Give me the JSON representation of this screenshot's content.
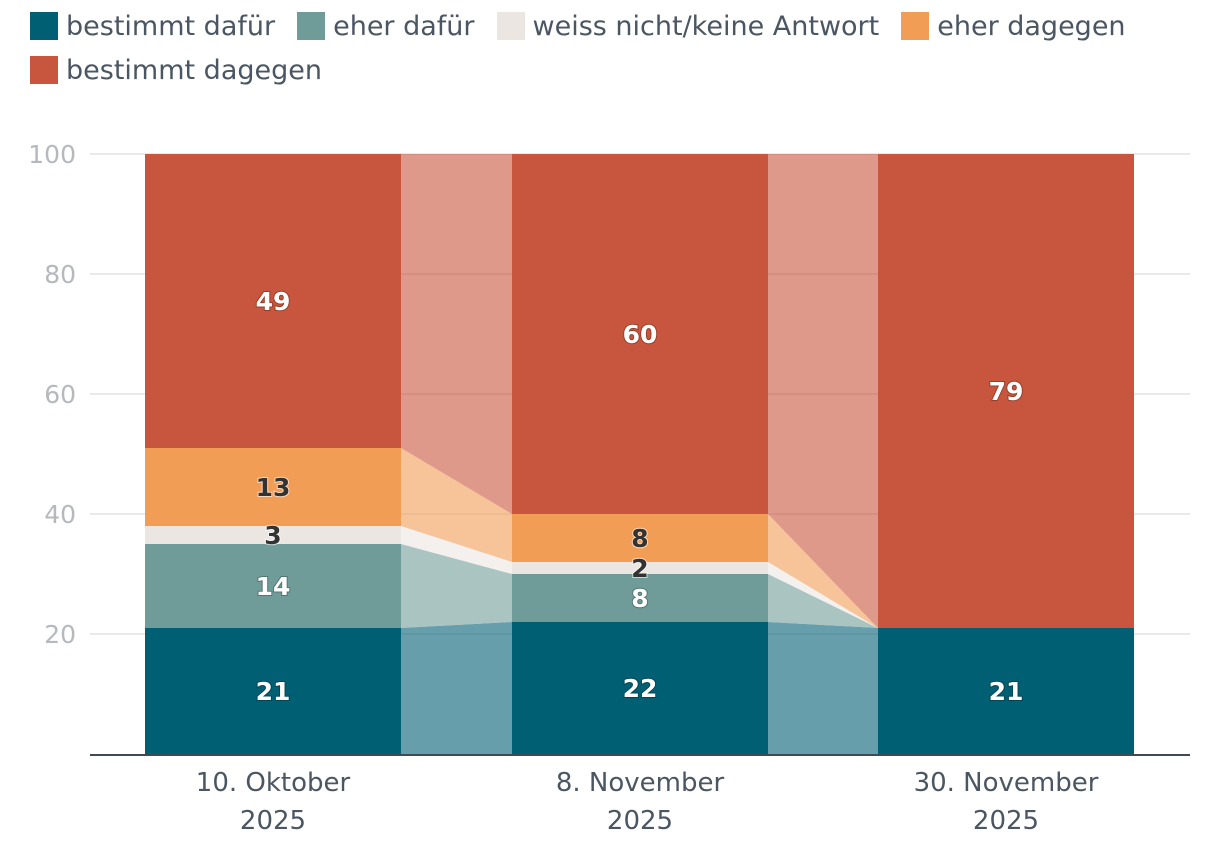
{
  "chart_data": {
    "type": "bar",
    "stacked": true,
    "categories": [
      "10. Oktober 2025",
      "8. November 2025",
      "30. November 2025"
    ],
    "category_lines": [
      [
        "10. Oktober",
        "2025"
      ],
      [
        "8. November",
        "2025"
      ],
      [
        "30. November",
        "2025"
      ]
    ],
    "series": [
      {
        "name": "bestimmt dafür",
        "color": "#005f73",
        "values": [
          21,
          22,
          21
        ]
      },
      {
        "name": "eher dafür",
        "color": "#6f9c98",
        "values": [
          14,
          8,
          0
        ]
      },
      {
        "name": "weiss nicht/keine Antwort",
        "color": "#ebe6e2",
        "values": [
          3,
          2,
          0
        ]
      },
      {
        "name": "eher dagegen",
        "color": "#f29d56",
        "values": [
          13,
          8,
          0
        ]
      },
      {
        "name": "bestimmt dagegen",
        "color": "#c8553d",
        "values": [
          49,
          60,
          79
        ]
      }
    ],
    "y_base": 0,
    "y_visible_min": 0,
    "ylim": [
      0,
      100
    ],
    "y_ticks": [
      20,
      40,
      60,
      80,
      100
    ],
    "label_colors": {
      "on_dark": "#ffffff",
      "on_light": "#333333"
    },
    "grid": true,
    "legend_position": "top-left"
  }
}
